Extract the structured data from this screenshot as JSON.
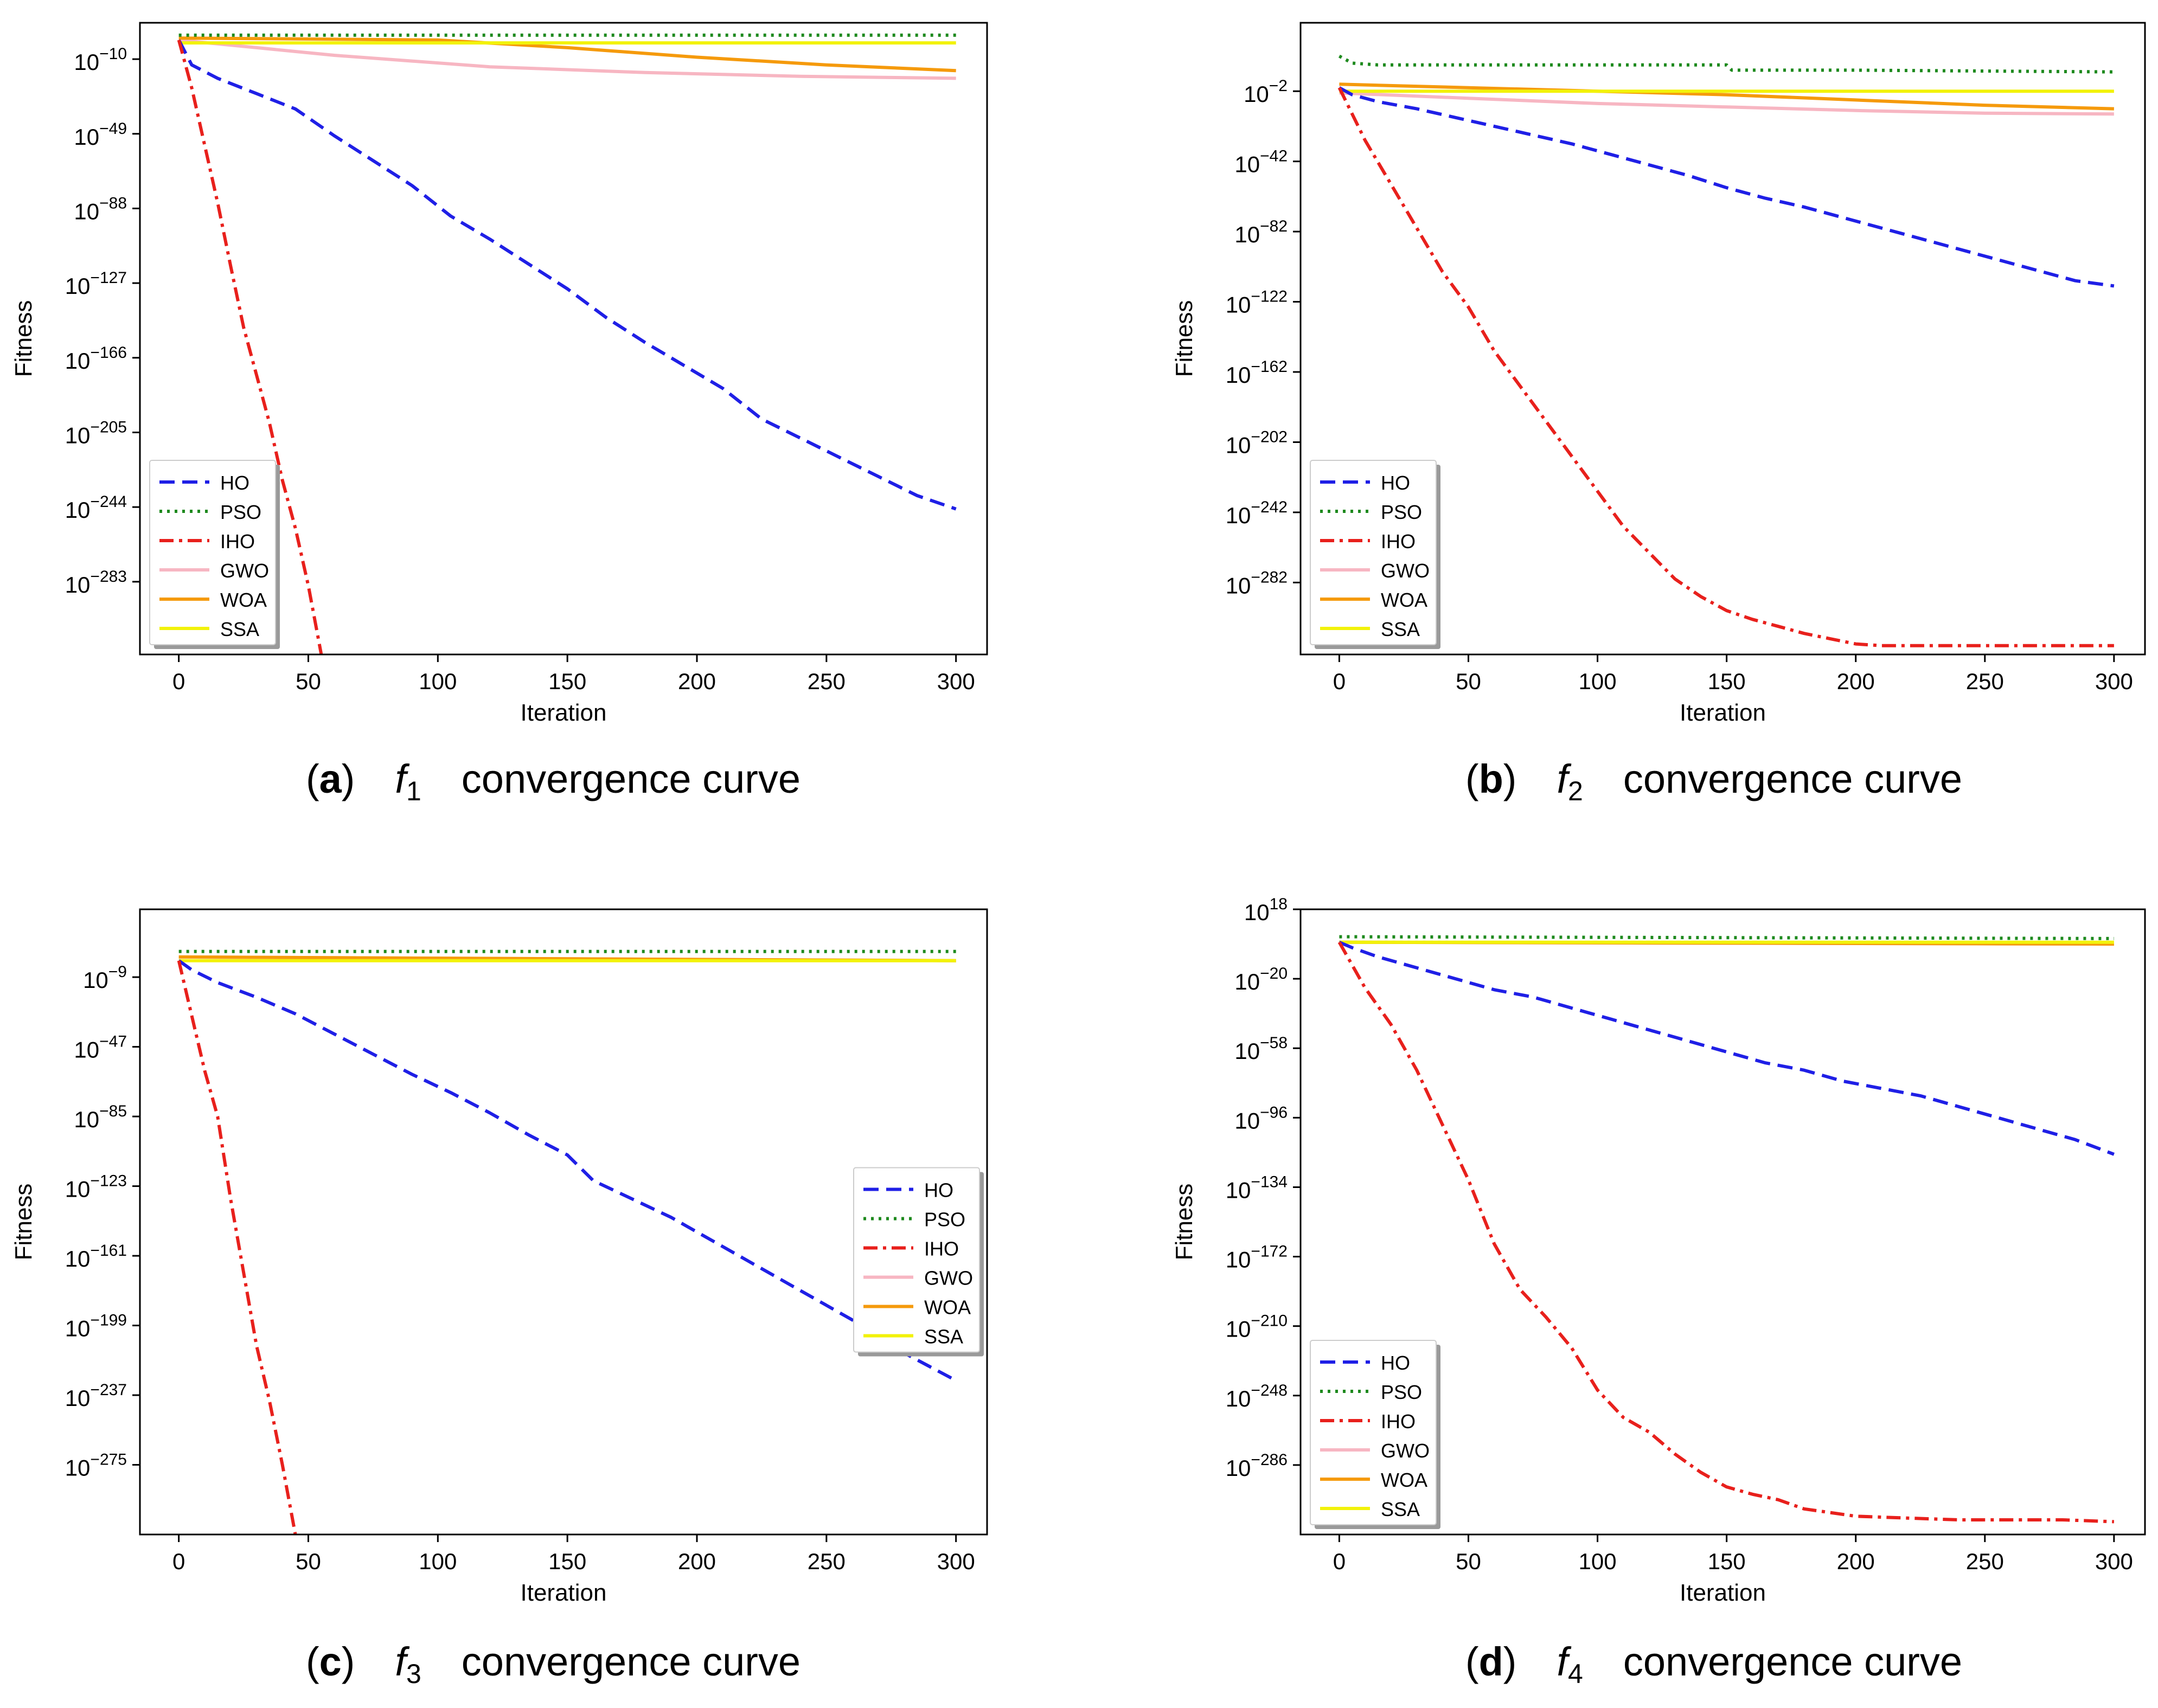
{
  "figure": {
    "charts_order": [
      "a",
      "b",
      "c",
      "d"
    ]
  },
  "series_styles": {
    "HO": {
      "color": "#1f1fe6",
      "dash": "28 14",
      "width": 6
    },
    "PSO": {
      "color": "#1e8a1e",
      "dash": "5 9",
      "width": 6
    },
    "IHO": {
      "color": "#e8201c",
      "dash": "26 10 6 10",
      "width": 6
    },
    "GWO": {
      "color": "#f7b6c2",
      "dash": "",
      "width": 6
    },
    "WOA": {
      "color": "#f59a0c",
      "dash": "",
      "width": 6
    },
    "SSA": {
      "color": "#f2f20a",
      "dash": "",
      "width": 6
    }
  },
  "chart_data": [
    {
      "id": "a",
      "type": "line",
      "caption": {
        "letter": "a",
        "func": "f",
        "sub": "1",
        "text": "convergence curve"
      },
      "xlabel": "Iteration",
      "ylabel": "Fitness",
      "xlim": [
        -15,
        312
      ],
      "ylim": [
        -321,
        9
      ],
      "xticks": [
        0,
        50,
        100,
        150,
        200,
        250,
        300
      ],
      "yticks": [
        -10,
        -49,
        -88,
        -127,
        -166,
        -205,
        -244,
        -283
      ],
      "tick_base": "10",
      "legend_loc": "lower-left",
      "series": [
        {
          "name": "HO",
          "x": [
            0,
            5,
            15,
            30,
            45,
            60,
            75,
            90,
            105,
            120,
            135,
            150,
            165,
            180,
            195,
            210,
            225,
            240,
            255,
            270,
            285,
            300
          ],
          "y": [
            0,
            -13,
            -20,
            -28,
            -36,
            -50,
            -63,
            -76,
            -92,
            -104,
            -117,
            -130,
            -145,
            -158,
            -170,
            -182,
            -198,
            -208,
            -218,
            -228,
            -238,
            -245
          ]
        },
        {
          "name": "PSO",
          "x": [
            0,
            100,
            200,
            300
          ],
          "y": [
            2.5,
            2.5,
            2.5,
            2.5
          ]
        },
        {
          "name": "IHO",
          "x": [
            0,
            5,
            10,
            15,
            20,
            25,
            30,
            35,
            40,
            45,
            50,
            55
          ],
          "y": [
            0,
            -25,
            -55,
            -85,
            -118,
            -150,
            -175,
            -200,
            -230,
            -255,
            -285,
            -321
          ]
        },
        {
          "name": "GWO",
          "x": [
            0,
            30,
            60,
            90,
            120,
            150,
            180,
            210,
            240,
            270,
            300
          ],
          "y": [
            0,
            -4,
            -8,
            -11,
            -14,
            -15.5,
            -17,
            -18,
            -19,
            -19.5,
            -20
          ]
        },
        {
          "name": "WOA",
          "x": [
            0,
            100,
            150,
            200,
            250,
            300
          ],
          "y": [
            1,
            0,
            -4,
            -9,
            -13,
            -16
          ]
        },
        {
          "name": "SSA",
          "x": [
            0,
            300
          ],
          "y": [
            -1.5,
            -1.5
          ]
        }
      ]
    },
    {
      "id": "b",
      "type": "line",
      "caption": {
        "letter": "b",
        "func": "f",
        "sub": "2",
        "text": "convergence curve"
      },
      "xlabel": "Iteration",
      "ylabel": "Fitness",
      "xlim": [
        -15,
        312
      ],
      "ylim": [
        -323,
        37
      ],
      "xticks": [
        0,
        50,
        100,
        150,
        200,
        250,
        300
      ],
      "yticks": [
        -2,
        -42,
        -82,
        -122,
        -162,
        -202,
        -242,
        -282
      ],
      "tick_base": "10",
      "legend_loc": "lower-left",
      "series": [
        {
          "name": "HO",
          "x": [
            0,
            5,
            15,
            30,
            45,
            60,
            75,
            90,
            105,
            120,
            135,
            150,
            165,
            180,
            195,
            210,
            225,
            240,
            255,
            270,
            285,
            300
          ],
          "y": [
            0,
            -4,
            -8,
            -12,
            -17,
            -22,
            -27,
            -32,
            -38,
            -44,
            -50,
            -57,
            -63,
            -68,
            -74,
            -80,
            -86,
            -92,
            -98,
            -104,
            -110,
            -113
          ]
        },
        {
          "name": "PSO",
          "x": [
            0,
            5,
            15,
            100,
            150,
            152,
            200,
            300
          ],
          "y": [
            18,
            14,
            13,
            13,
            13,
            10,
            10,
            9
          ]
        },
        {
          "name": "IHO",
          "x": [
            0,
            10,
            20,
            30,
            40,
            50,
            60,
            70,
            80,
            90,
            100,
            110,
            120,
            130,
            140,
            150,
            160,
            170,
            180,
            190,
            200,
            210,
            220,
            300
          ],
          "y": [
            0,
            -30,
            -55,
            -80,
            -105,
            -125,
            -150,
            -170,
            -190,
            -210,
            -230,
            -250,
            -265,
            -280,
            -290,
            -298,
            -303,
            -307,
            -311,
            -314,
            -317,
            -318,
            -318,
            -318
          ]
        },
        {
          "name": "GWO",
          "x": [
            0,
            50,
            100,
            150,
            200,
            250,
            300
          ],
          "y": [
            -3,
            -6,
            -9,
            -11,
            -13,
            -14.5,
            -15
          ]
        },
        {
          "name": "WOA",
          "x": [
            0,
            50,
            100,
            150,
            200,
            250,
            300
          ],
          "y": [
            2,
            0,
            -2,
            -4,
            -7,
            -10,
            -12
          ]
        },
        {
          "name": "SSA",
          "x": [
            0,
            300
          ],
          "y": [
            -2,
            -2
          ]
        }
      ]
    },
    {
      "id": "c",
      "type": "line",
      "caption": {
        "letter": "c",
        "func": "f",
        "sub": "3",
        "text": "convergence curve"
      },
      "xlabel": "Iteration",
      "ylabel": "Fitness",
      "xlim": [
        -15,
        312
      ],
      "ylim": [
        -313,
        28
      ],
      "xticks": [
        0,
        50,
        100,
        150,
        200,
        250,
        300
      ],
      "yticks": [
        -9,
        -47,
        -85,
        -123,
        -161,
        -199,
        -237,
        -275
      ],
      "tick_base": "10",
      "legend_loc": "center-right",
      "series": [
        {
          "name": "HO",
          "x": [
            0,
            5,
            15,
            30,
            45,
            60,
            75,
            90,
            105,
            120,
            135,
            150,
            160,
            175,
            190,
            205,
            220,
            235,
            250,
            265,
            280,
            300
          ],
          "y": [
            0,
            -5,
            -12,
            -20,
            -29,
            -40,
            -51,
            -62,
            -72,
            -83,
            -95,
            -106,
            -120,
            -130,
            -140,
            -152,
            -164,
            -176,
            -188,
            -200,
            -214,
            -229
          ]
        },
        {
          "name": "PSO",
          "x": [
            0,
            300
          ],
          "y": [
            5,
            5
          ]
        },
        {
          "name": "IHO",
          "x": [
            0,
            5,
            10,
            15,
            20,
            25,
            30,
            35,
            40,
            45
          ],
          "y": [
            0,
            -30,
            -60,
            -85,
            -130,
            -170,
            -210,
            -240,
            -275,
            -313
          ]
        },
        {
          "name": "GWO",
          "x": [
            0,
            300
          ],
          "y": [
            2,
            0
          ]
        },
        {
          "name": "WOA",
          "x": [
            0,
            300
          ],
          "y": [
            2,
            0
          ]
        },
        {
          "name": "SSA",
          "x": [
            0,
            300
          ],
          "y": [
            0,
            0
          ]
        }
      ]
    },
    {
      "id": "d",
      "type": "line",
      "caption": {
        "letter": "d",
        "func": "f",
        "sub": "4",
        "text": "convergence curve"
      },
      "xlabel": "Iteration",
      "ylabel": "Fitness",
      "xlim": [
        -15,
        312
      ],
      "ylim": [
        -324,
        18
      ],
      "xticks": [
        0,
        50,
        100,
        150,
        200,
        250,
        300
      ],
      "yticks": [
        18,
        -20,
        -58,
        -96,
        -134,
        -172,
        -210,
        -248,
        -286
      ],
      "tick_base": "10",
      "legend_loc": "lower-left",
      "series": [
        {
          "name": "HO",
          "x": [
            0,
            5,
            15,
            30,
            45,
            60,
            75,
            90,
            105,
            120,
            135,
            150,
            165,
            180,
            195,
            210,
            225,
            240,
            255,
            270,
            285,
            300
          ],
          "y": [
            0,
            -3,
            -8,
            -14,
            -20,
            -26,
            -30,
            -36,
            -42,
            -48,
            -54,
            -60,
            -66,
            -70,
            -76,
            -80,
            -84,
            -90,
            -96,
            -102,
            -108,
            -116
          ]
        },
        {
          "name": "PSO",
          "x": [
            0,
            300
          ],
          "y": [
            3,
            2
          ]
        },
        {
          "name": "IHO",
          "x": [
            0,
            10,
            20,
            30,
            40,
            50,
            60,
            70,
            80,
            90,
            100,
            110,
            120,
            130,
            140,
            150,
            160,
            170,
            180,
            190,
            200,
            220,
            240,
            260,
            280,
            300
          ],
          "y": [
            0,
            -25,
            -45,
            -70,
            -100,
            -130,
            -165,
            -190,
            -205,
            -222,
            -245,
            -260,
            -268,
            -280,
            -290,
            -298,
            -302,
            -305,
            -310,
            -312,
            -314,
            -315,
            -316,
            -316,
            -316,
            -317
          ]
        },
        {
          "name": "GWO",
          "x": [
            0,
            300
          ],
          "y": [
            0,
            -1
          ]
        },
        {
          "name": "WOA",
          "x": [
            0,
            300
          ],
          "y": [
            0,
            -1
          ]
        },
        {
          "name": "SSA",
          "x": [
            0,
            300
          ],
          "y": [
            0,
            0
          ]
        }
      ]
    }
  ]
}
